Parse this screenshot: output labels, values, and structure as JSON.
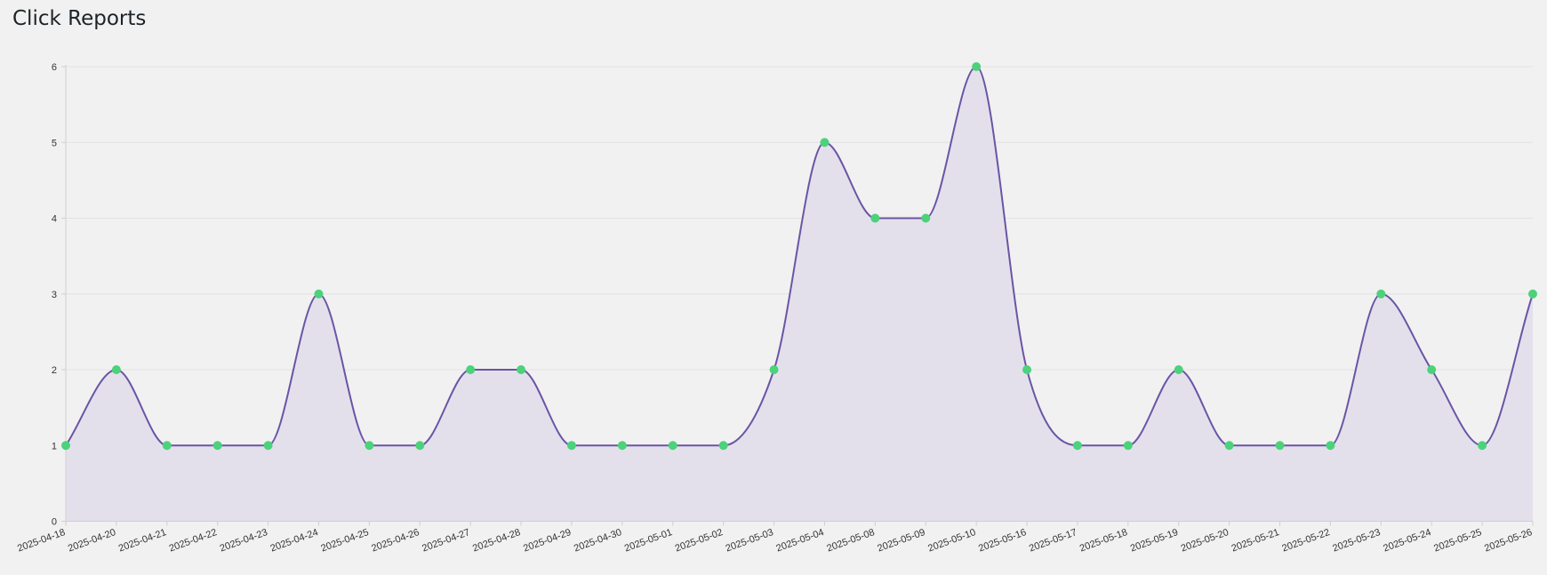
{
  "page": {
    "title": "Click Reports"
  },
  "chart_data": {
    "type": "area",
    "curve": "smooth",
    "categories": [
      "2025-04-18",
      "2025-04-20",
      "2025-04-21",
      "2025-04-22",
      "2025-04-23",
      "2025-04-24",
      "2025-04-25",
      "2025-04-26",
      "2025-04-27",
      "2025-04-28",
      "2025-04-29",
      "2025-04-30",
      "2025-05-01",
      "2025-05-02",
      "2025-05-03",
      "2025-05-04",
      "2025-05-08",
      "2025-05-09",
      "2025-05-10",
      "2025-05-16",
      "2025-05-17",
      "2025-05-18",
      "2025-05-19",
      "2025-05-20",
      "2025-05-21",
      "2025-05-22",
      "2025-05-23",
      "2025-05-24",
      "2025-05-25",
      "2025-05-26"
    ],
    "series": [
      {
        "values": [
          1,
          2,
          1,
          1,
          1,
          3,
          1,
          1,
          2,
          2,
          1,
          1,
          1,
          1,
          2,
          5,
          4,
          4,
          6,
          2,
          1,
          1,
          2,
          1,
          1,
          1,
          3,
          2,
          1,
          3
        ]
      }
    ],
    "yticks": [
      0,
      1,
      2,
      3,
      4,
      5,
      6
    ],
    "ylim": [
      0,
      6
    ],
    "grid": true,
    "legend": "none",
    "colors": {
      "line": "#6a55a5",
      "fill": "#e3e0ec",
      "point": "#4cd27a",
      "grid": "#e2e2e2",
      "axis": "#cfcfcf"
    }
  }
}
